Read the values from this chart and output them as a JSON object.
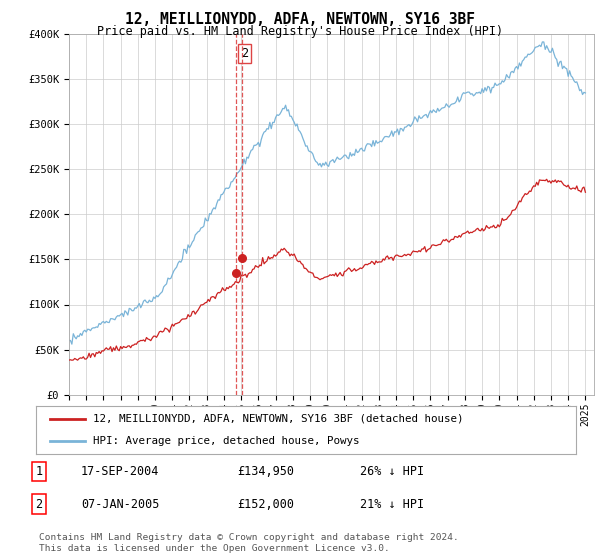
{
  "title": "12, MEILLIONYDD, ADFA, NEWTOWN, SY16 3BF",
  "subtitle": "Price paid vs. HM Land Registry's House Price Index (HPI)",
  "ylim": [
    0,
    400000
  ],
  "yticks": [
    0,
    50000,
    100000,
    150000,
    200000,
    250000,
    300000,
    350000,
    400000
  ],
  "ytick_labels": [
    "£0",
    "£50K",
    "£100K",
    "£150K",
    "£200K",
    "£250K",
    "£300K",
    "£350K",
    "£400K"
  ],
  "xtick_years": [
    1995,
    1996,
    1997,
    1998,
    1999,
    2000,
    2001,
    2002,
    2003,
    2004,
    2005,
    2006,
    2007,
    2008,
    2009,
    2010,
    2011,
    2012,
    2013,
    2014,
    2015,
    2016,
    2017,
    2018,
    2019,
    2020,
    2021,
    2022,
    2023,
    2024,
    2025
  ],
  "hpi_color": "#7ab4d8",
  "price_color": "#cc2222",
  "dashed_color": "#dd4444",
  "transaction1": {
    "date_num": 2004.72,
    "price": 134950,
    "label": "1",
    "date_str": "17-SEP-2004",
    "pct": "26% ↓ HPI"
  },
  "transaction2": {
    "date_num": 2005.03,
    "price": 152000,
    "label": "2",
    "date_str": "07-JAN-2005",
    "pct": "21% ↓ HPI"
  },
  "legend_line1": "12, MEILLIONYDD, ADFA, NEWTOWN, SY16 3BF (detached house)",
  "legend_line2": "HPI: Average price, detached house, Powys",
  "footer": "Contains HM Land Registry data © Crown copyright and database right 2024.\nThis data is licensed under the Open Government Licence v3.0.",
  "background_color": "#ffffff",
  "grid_color": "#cccccc"
}
